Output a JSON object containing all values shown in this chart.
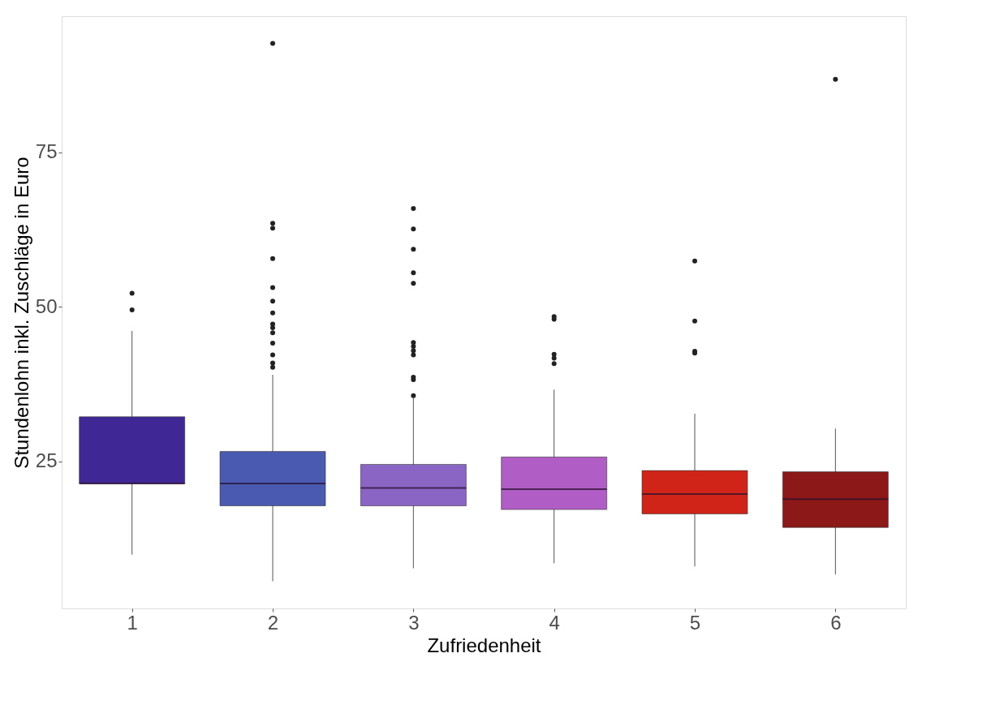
{
  "chart_data": {
    "type": "box",
    "xlabel": "Zufriedenheit",
    "ylabel": "Stundenlohn inkl. Zuschläge in Euro",
    "categories": [
      "1",
      "2",
      "3",
      "4",
      "5",
      "6"
    ],
    "colors": [
      "#3f2896",
      "#4a5ab0",
      "#8a65c4",
      "#b05ec6",
      "#d02418",
      "#8c1818"
    ],
    "boxes": [
      {
        "low": 9.9,
        "q1": 21.4,
        "median": 21.4,
        "q3": 32.2,
        "high": 46.1,
        "outliers": [
          52.2,
          49.5
        ]
      },
      {
        "low": 5.6,
        "q1": 17.8,
        "median": 21.4,
        "q3": 26.6,
        "high": 39.0,
        "outliers": [
          92.6,
          63.5,
          62.7,
          57.8,
          53.1,
          50.9,
          49.0,
          47.2,
          46.6,
          45.8,
          44.1,
          42.2,
          40.9,
          40.2
        ]
      },
      {
        "low": 7.7,
        "q1": 17.8,
        "median": 20.7,
        "q3": 24.5,
        "high": 35.2,
        "outliers": [
          65.9,
          62.6,
          59.3,
          55.5,
          53.8,
          44.2,
          43.6,
          42.9,
          42.2,
          38.6,
          38.2,
          35.6
        ]
      },
      {
        "low": 8.5,
        "q1": 17.2,
        "median": 20.5,
        "q3": 25.7,
        "high": 36.6,
        "outliers": [
          48.4,
          48.0,
          42.3,
          41.7,
          40.8
        ]
      },
      {
        "low": 8.0,
        "q1": 16.5,
        "median": 19.7,
        "q3": 23.5,
        "high": 32.7,
        "outliers": [
          57.4,
          47.7,
          42.8,
          42.5
        ]
      },
      {
        "low": 6.7,
        "q1": 14.3,
        "median": 18.9,
        "q3": 23.3,
        "high": 30.3,
        "outliers": [
          86.8
        ]
      }
    ],
    "ylim": [
      1.2,
      97
    ],
    "yticks": [
      25,
      50,
      75
    ],
    "grid": false
  }
}
